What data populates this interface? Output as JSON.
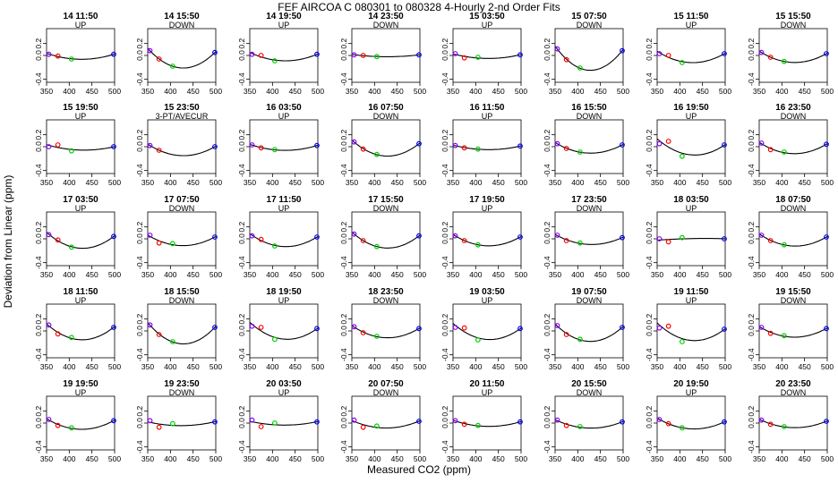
{
  "figure": {
    "title": "FEF   AIRCOA C   080301 to 080328   4-Hourly 2-nd Order Fits",
    "xlabel": "Measured CO2 (ppm)",
    "ylabel": "Deviation from Linear (ppm)"
  },
  "chart_data": {
    "type": "scatter",
    "xlim": [
      350,
      500
    ],
    "ylim": [
      -0.45,
      0.45
    ],
    "xticks": [
      "350",
      "400",
      "450",
      "500"
    ],
    "yticks": [
      "-0.4",
      "0.0",
      "0.2"
    ],
    "x_points": [
      355,
      375,
      405,
      498
    ],
    "marker_colors": [
      "#8b00ff",
      "#ff0000",
      "#00cc00",
      "#0000ff"
    ],
    "panels": [
      {
        "time": "14 11:50",
        "mode": "UP",
        "x": [
          355,
          375,
          405,
          498
        ],
        "y": [
          0.02,
          -0.01,
          -0.06,
          0.02
        ]
      },
      {
        "time": "14 15:50",
        "mode": "DOWN",
        "x": [
          355,
          375,
          405,
          498
        ],
        "y": [
          0.08,
          -0.06,
          -0.18,
          0.05
        ]
      },
      {
        "time": "14 19:50",
        "mode": "UP",
        "x": [
          355,
          375,
          405,
          498
        ],
        "y": [
          0.02,
          0.0,
          -0.09,
          0.02
        ]
      },
      {
        "time": "14 23:50",
        "mode": "DOWN",
        "x": [
          355,
          375,
          405,
          498
        ],
        "y": [
          0.01,
          0.0,
          -0.02,
          0.01
        ]
      },
      {
        "time": "15 03:50",
        "mode": "UP",
        "x": [
          355,
          375,
          405,
          498
        ],
        "y": [
          0.03,
          -0.04,
          -0.03,
          0.01
        ]
      },
      {
        "time": "15 07:50",
        "mode": "DOWN",
        "x": [
          355,
          375,
          405,
          498
        ],
        "y": [
          0.11,
          -0.07,
          -0.21,
          0.08
        ]
      },
      {
        "time": "15 11:50",
        "mode": "UP",
        "x": [
          355,
          375,
          405,
          498
        ],
        "y": [
          0.03,
          0.0,
          -0.12,
          0.03
        ]
      },
      {
        "time": "15 15:50",
        "mode": "DOWN",
        "x": [
          355,
          375,
          405,
          498
        ],
        "y": [
          0.05,
          -0.03,
          -0.1,
          0.03
        ]
      },
      {
        "time": "15 19:50",
        "mode": "UP",
        "x": [
          355,
          375,
          405,
          498
        ],
        "y": [
          0.0,
          0.03,
          -0.07,
          0.0
        ]
      },
      {
        "time": "15 23:50",
        "mode": "3-PT/AVECUR",
        "x": [
          355,
          375,
          498
        ],
        "y": [
          0.02,
          -0.06,
          0.0
        ]
      },
      {
        "time": "16 03:50",
        "mode": "UP",
        "x": [
          355,
          375,
          405,
          498
        ],
        "y": [
          0.03,
          -0.02,
          -0.05,
          0.02
        ]
      },
      {
        "time": "16 07:50",
        "mode": "DOWN",
        "x": [
          355,
          375,
          405,
          498
        ],
        "y": [
          0.08,
          -0.04,
          -0.13,
          0.05
        ]
      },
      {
        "time": "16 11:50",
        "mode": "UP",
        "x": [
          355,
          375,
          405,
          498
        ],
        "y": [
          0.02,
          -0.02,
          -0.04,
          0.01
        ]
      },
      {
        "time": "16 15:50",
        "mode": "DOWN",
        "x": [
          355,
          375,
          405,
          498
        ],
        "y": [
          0.05,
          -0.03,
          -0.09,
          0.03
        ]
      },
      {
        "time": "16 19:50",
        "mode": "UP",
        "x": [
          355,
          375,
          405,
          498
        ],
        "y": [
          0.05,
          0.09,
          -0.16,
          0.03
        ]
      },
      {
        "time": "16 23:50",
        "mode": "DOWN",
        "x": [
          355,
          375,
          405,
          498
        ],
        "y": [
          0.06,
          -0.05,
          -0.09,
          0.04
        ]
      },
      {
        "time": "17 03:50",
        "mode": "UP",
        "x": [
          355,
          375,
          405,
          498
        ],
        "y": [
          0.07,
          -0.02,
          -0.14,
          0.04
        ]
      },
      {
        "time": "17 07:50",
        "mode": "DOWN",
        "x": [
          355,
          375,
          405,
          498
        ],
        "y": [
          0.06,
          -0.07,
          -0.08,
          0.03
        ]
      },
      {
        "time": "17 11:50",
        "mode": "UP",
        "x": [
          355,
          375,
          405,
          498
        ],
        "y": [
          0.05,
          -0.01,
          -0.12,
          0.03
        ]
      },
      {
        "time": "17 15:50",
        "mode": "DOWN",
        "x": [
          355,
          375,
          405,
          498
        ],
        "y": [
          0.08,
          -0.03,
          -0.13,
          0.05
        ]
      },
      {
        "time": "17 19:50",
        "mode": "UP",
        "x": [
          355,
          375,
          405,
          498
        ],
        "y": [
          0.05,
          -0.03,
          -0.1,
          0.03
        ]
      },
      {
        "time": "17 23:50",
        "mode": "DOWN",
        "x": [
          355,
          375,
          405,
          498
        ],
        "y": [
          0.06,
          -0.03,
          -0.07,
          0.02
        ]
      },
      {
        "time": "18 03:50",
        "mode": "UP",
        "x": [
          355,
          375,
          405,
          498
        ],
        "y": [
          0.0,
          -0.05,
          0.02,
          0.0
        ]
      },
      {
        "time": "18 07:50",
        "mode": "DOWN",
        "x": [
          355,
          375,
          405,
          498
        ],
        "y": [
          0.06,
          -0.03,
          -0.1,
          0.03
        ]
      },
      {
        "time": "18 11:50",
        "mode": "UP",
        "x": [
          355,
          375,
          405,
          498
        ],
        "y": [
          0.1,
          -0.05,
          -0.11,
          0.06
        ]
      },
      {
        "time": "18 15:50",
        "mode": "DOWN",
        "x": [
          355,
          375,
          405,
          498
        ],
        "y": [
          0.1,
          -0.06,
          -0.18,
          0.06
        ]
      },
      {
        "time": "18 19:50",
        "mode": "UP",
        "x": [
          355,
          375,
          405,
          498
        ],
        "y": [
          0.08,
          0.06,
          -0.14,
          0.04
        ]
      },
      {
        "time": "18 23:50",
        "mode": "DOWN",
        "x": [
          355,
          375,
          405,
          498
        ],
        "y": [
          0.07,
          -0.03,
          -0.09,
          0.04
        ]
      },
      {
        "time": "19 03:50",
        "mode": "UP",
        "x": [
          355,
          375,
          405,
          498
        ],
        "y": [
          0.06,
          0.05,
          -0.15,
          0.04
        ]
      },
      {
        "time": "19 07:50",
        "mode": "DOWN",
        "x": [
          355,
          375,
          405,
          498
        ],
        "y": [
          0.09,
          -0.06,
          -0.14,
          0.06
        ]
      },
      {
        "time": "19 11:50",
        "mode": "UP",
        "x": [
          355,
          375,
          405,
          498
        ],
        "y": [
          0.05,
          0.08,
          -0.18,
          0.03
        ]
      },
      {
        "time": "19 15:50",
        "mode": "DOWN",
        "x": [
          355,
          375,
          405,
          498
        ],
        "y": [
          0.06,
          -0.04,
          -0.08,
          0.04
        ]
      },
      {
        "time": "19 19:50",
        "mode": "UP",
        "x": [
          355,
          375,
          405,
          498
        ],
        "y": [
          0.06,
          -0.04,
          -0.08,
          0.04
        ]
      },
      {
        "time": "19 23:50",
        "mode": "DOWN",
        "x": [
          355,
          375,
          405,
          498
        ],
        "y": [
          0.04,
          -0.07,
          -0.01,
          0.02
        ]
      },
      {
        "time": "20 03:50",
        "mode": "UP",
        "x": [
          355,
          375,
          405,
          498
        ],
        "y": [
          0.05,
          -0.06,
          0.0,
          0.02
        ]
      },
      {
        "time": "20 07:50",
        "mode": "DOWN",
        "x": [
          355,
          375,
          405,
          498
        ],
        "y": [
          0.05,
          -0.07,
          -0.05,
          0.03
        ]
      },
      {
        "time": "20 11:50",
        "mode": "UP",
        "x": [
          355,
          375,
          405,
          498
        ],
        "y": [
          0.04,
          -0.02,
          -0.04,
          0.02
        ]
      },
      {
        "time": "20 15:50",
        "mode": "DOWN",
        "x": [
          355,
          375,
          405,
          498
        ],
        "y": [
          0.05,
          -0.04,
          -0.06,
          0.02
        ]
      },
      {
        "time": "20 19:50",
        "mode": "UP",
        "x": [
          355,
          375,
          405,
          498
        ],
        "y": [
          0.06,
          -0.01,
          -0.08,
          0.02
        ]
      },
      {
        "time": "20 23:50",
        "mode": "DOWN",
        "x": [
          355,
          375,
          405,
          498
        ],
        "y": [
          0.05,
          -0.02,
          -0.06,
          0.03
        ]
      }
    ]
  }
}
